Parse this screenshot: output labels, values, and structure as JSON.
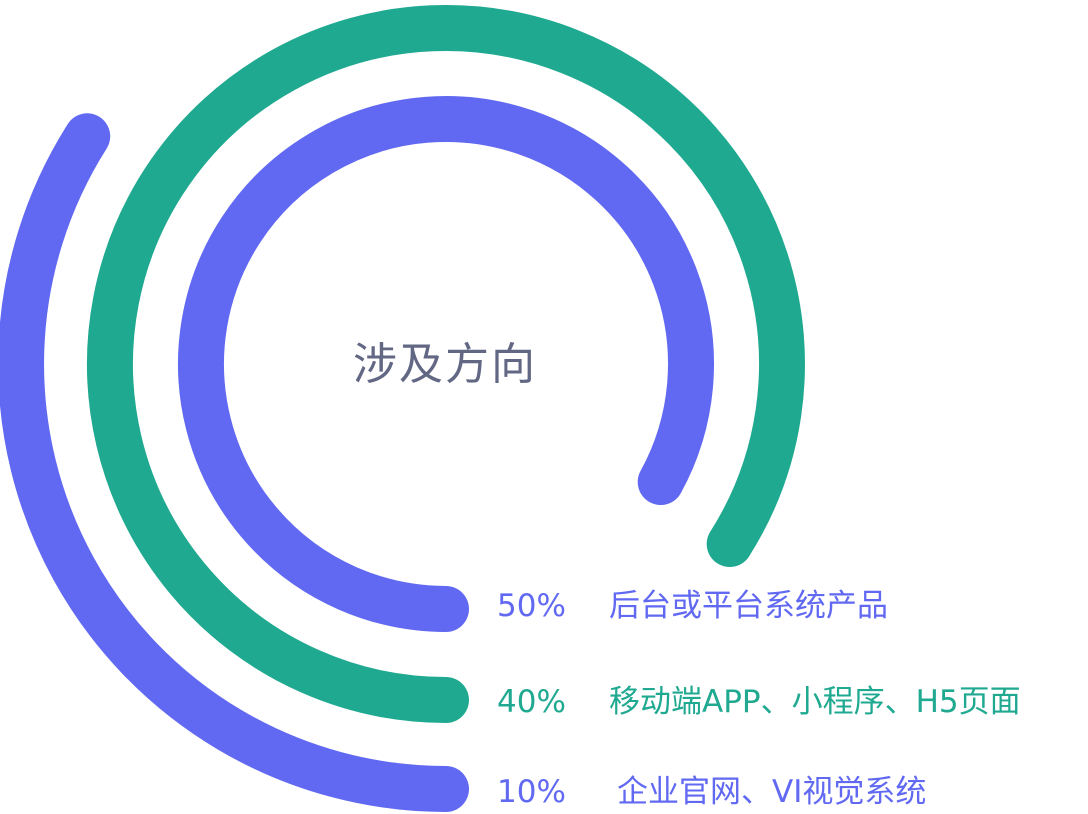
{
  "chart_data": {
    "type": "radial-bar",
    "title": "涉及方向",
    "max": 100,
    "series": [
      {
        "name": "后台或平台系统产品",
        "value_label": "50%",
        "value": 50,
        "color": "#6169F2"
      },
      {
        "name": "移动端APP、小程序、H5页面",
        "value_label": "40%",
        "value": 40,
        "color": "#1FA990"
      },
      {
        "name": "企业官网、VI视觉系统",
        "value_label": "10%",
        "value": 10,
        "color": "#6169F2"
      }
    ]
  }
}
